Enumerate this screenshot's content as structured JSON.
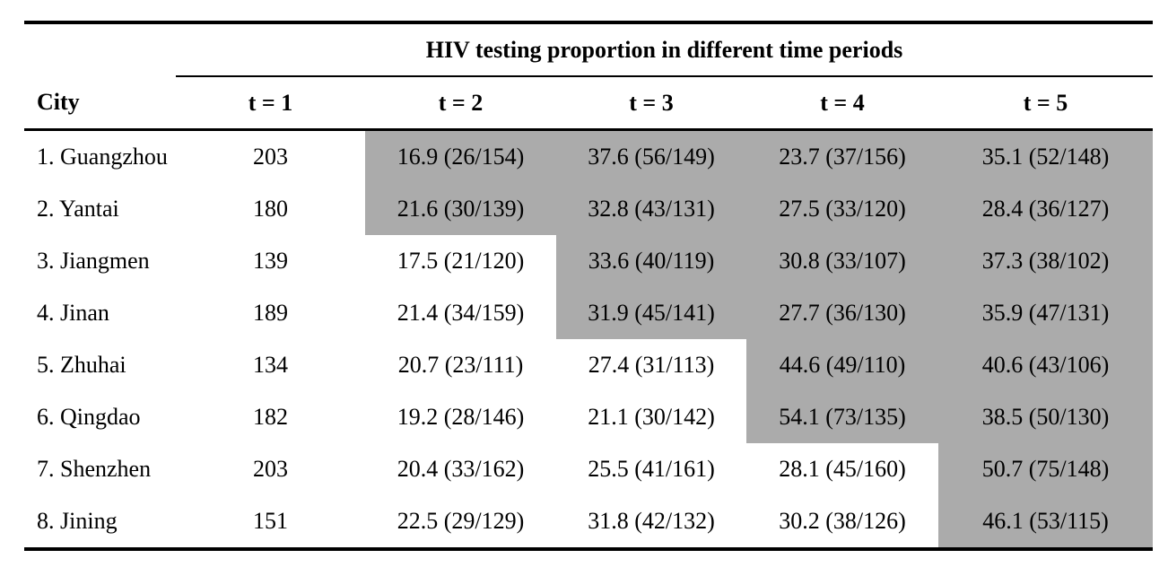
{
  "table": {
    "title": "HIV testing proportion in different time periods",
    "columns": {
      "city_label": "City",
      "periods": [
        "t = 1",
        "t = 2",
        "t = 3",
        "t = 4",
        "t = 5"
      ]
    },
    "rows": [
      {
        "city": "1. Guangzhou",
        "values": [
          "203",
          "16.9 (26/154)",
          "37.6 (56/149)",
          "23.7 (37/156)",
          "35.1 (52/148)"
        ],
        "shaded_from_period": 2
      },
      {
        "city": "2. Yantai",
        "values": [
          "180",
          "21.6 (30/139)",
          "32.8 (43/131)",
          "27.5 (33/120)",
          "28.4 (36/127)"
        ],
        "shaded_from_period": 2
      },
      {
        "city": "3. Jiangmen",
        "values": [
          "139",
          "17.5 (21/120)",
          "33.6 (40/119)",
          "30.8 (33/107)",
          "37.3 (38/102)"
        ],
        "shaded_from_period": 3
      },
      {
        "city": "4. Jinan",
        "values": [
          "189",
          "21.4 (34/159)",
          "31.9 (45/141)",
          "27.7 (36/130)",
          "35.9 (47/131)"
        ],
        "shaded_from_period": 3
      },
      {
        "city": "5. Zhuhai",
        "values": [
          "134",
          "20.7 (23/111)",
          "27.4 (31/113)",
          "44.6 (49/110)",
          "40.6 (43/106)"
        ],
        "shaded_from_period": 4
      },
      {
        "city": "6. Qingdao",
        "values": [
          "182",
          "19.2 (28/146)",
          "21.1 (30/142)",
          "54.1 (73/135)",
          "38.5 (50/130)"
        ],
        "shaded_from_period": 4
      },
      {
        "city": "7. Shenzhen",
        "values": [
          "203",
          "20.4 (33/162)",
          "25.5 (41/161)",
          "28.1 (45/160)",
          "50.7 (75/148)"
        ],
        "shaded_from_period": 5
      },
      {
        "city": "8. Jining",
        "values": [
          "151",
          "22.5 (29/129)",
          "31.8 (42/132)",
          "30.2 (38/126)",
          "46.1 (53/115)"
        ],
        "shaded_from_period": 5
      }
    ],
    "colors": {
      "shading": "#ABABAB",
      "rule": "#000000",
      "background": "#FFFFFF"
    }
  }
}
